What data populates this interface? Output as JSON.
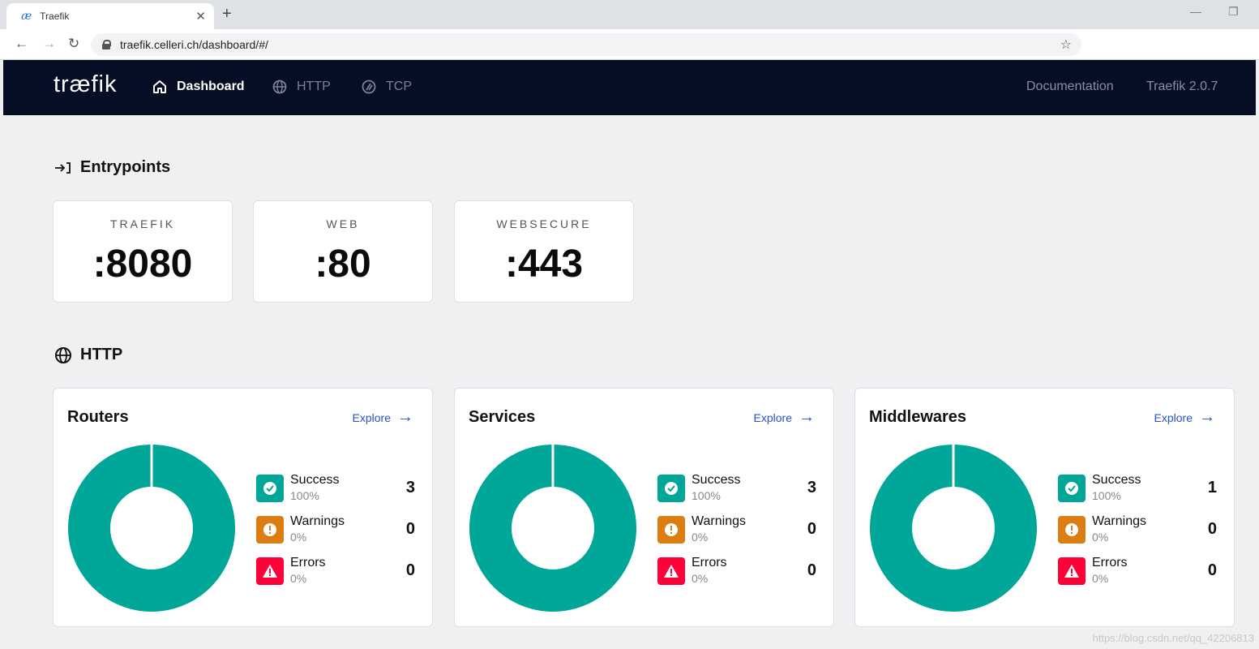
{
  "browser": {
    "tab_title": "Traefik",
    "favicon": "æ",
    "url": "traefik.celleri.ch/dashboard/#/"
  },
  "nav": {
    "logo": "træfik",
    "items": [
      {
        "label": "Dashboard",
        "icon": "home-icon",
        "active": true
      },
      {
        "label": "HTTP",
        "icon": "globe-icon",
        "active": false
      },
      {
        "label": "TCP",
        "icon": "tcp-icon",
        "active": false
      }
    ],
    "documentation": "Documentation",
    "version": "Traefik 2.0.7"
  },
  "entrypoints": {
    "title": "Entrypoints",
    "icon": "entry-arrow-icon",
    "items": [
      {
        "name": "TRAEFIK",
        "port": ":8080"
      },
      {
        "name": "WEB",
        "port": ":80"
      },
      {
        "name": "WEBSECURE",
        "port": ":443"
      }
    ]
  },
  "http": {
    "title": "HTTP",
    "icon": "globe-icon",
    "explore_label": "Explore",
    "cards": [
      {
        "title": "Routers",
        "success": {
          "label": "Success",
          "pct": "100%",
          "count": "3"
        },
        "warnings": {
          "label": "Warnings",
          "pct": "0%",
          "count": "0"
        },
        "errors": {
          "label": "Errors",
          "pct": "0%",
          "count": "0"
        }
      },
      {
        "title": "Services",
        "success": {
          "label": "Success",
          "pct": "100%",
          "count": "3"
        },
        "warnings": {
          "label": "Warnings",
          "pct": "0%",
          "count": "0"
        },
        "errors": {
          "label": "Errors",
          "pct": "0%",
          "count": "0"
        }
      },
      {
        "title": "Middlewares",
        "success": {
          "label": "Success",
          "pct": "100%",
          "count": "1"
        },
        "warnings": {
          "label": "Warnings",
          "pct": "0%",
          "count": "0"
        },
        "errors": {
          "label": "Errors",
          "pct": "0%",
          "count": "0"
        }
      }
    ]
  },
  "colors": {
    "success": "#00a697",
    "warning": "#db7d11",
    "error": "#ff0039",
    "nav_bg": "#060e26",
    "link": "#2553c9"
  },
  "watermark": "https://blog.csdn.net/qq_42206813"
}
